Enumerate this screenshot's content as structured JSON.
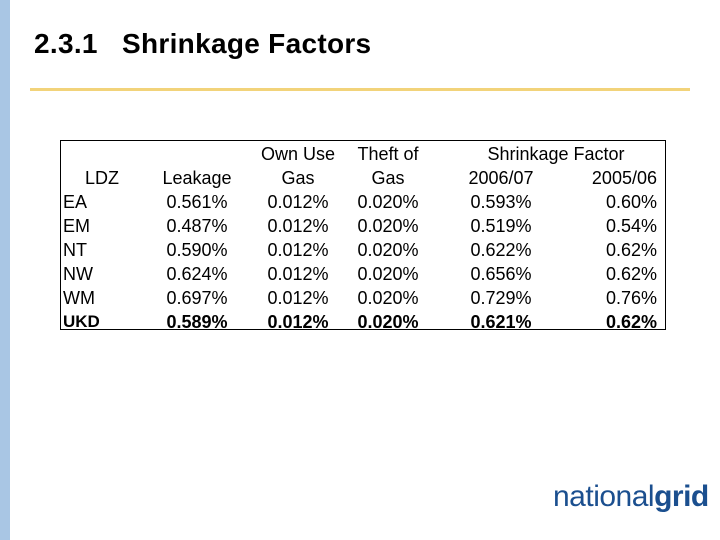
{
  "slide": {
    "title": "2.3.1   Shrinkage Factors",
    "logo": {
      "part1": "national",
      "part2": "grid"
    }
  },
  "table": {
    "headers": {
      "ldz": "LDZ",
      "leakage": "Leakage",
      "own_use_1": "Own Use",
      "own_use_2": "Gas",
      "theft_1": "Theft of",
      "theft_2": "Gas",
      "shrinkage": "Shrinkage Factor",
      "year1": "2006/07",
      "year2": "2005/06"
    },
    "rows": [
      {
        "ldz": "EA",
        "leakage": "0.561%",
        "own_use": "0.012%",
        "theft": "0.020%",
        "sf1": "0.593%",
        "sf2": "0.60%"
      },
      {
        "ldz": "EM",
        "leakage": "0.487%",
        "own_use": "0.012%",
        "theft": "0.020%",
        "sf1": "0.519%",
        "sf2": "0.54%"
      },
      {
        "ldz": "NT",
        "leakage": "0.590%",
        "own_use": "0.012%",
        "theft": "0.020%",
        "sf1": "0.622%",
        "sf2": "0.62%"
      },
      {
        "ldz": "NW",
        "leakage": "0.624%",
        "own_use": "0.012%",
        "theft": "0.020%",
        "sf1": "0.656%",
        "sf2": "0.62%"
      },
      {
        "ldz": "WM",
        "leakage": "0.697%",
        "own_use": "0.012%",
        "theft": "0.020%",
        "sf1": "0.729%",
        "sf2": "0.76%"
      }
    ],
    "total": {
      "ldz": "UKD",
      "leakage": "0.589%",
      "own_use": "0.012%",
      "theft": "0.020%",
      "sf1": "0.621%",
      "sf2": "0.62%"
    }
  }
}
